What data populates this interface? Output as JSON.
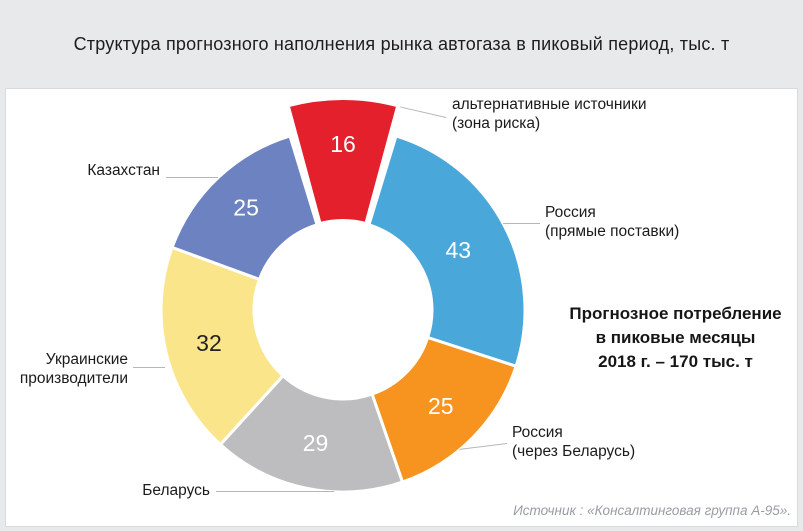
{
  "title": "Структура прогнозного наполнения рынка автогаза в пиковый период, тыс. т",
  "annotation": {
    "text": "Прогнозное потребление\nв пиковые месяцы\n2018 г. – 170 тыс. т"
  },
  "source": "Источник : «Консалтинговая группа А-95».",
  "palette": {
    "band_background": "#e8e9ea",
    "card_background": "#ffffff",
    "card_border": "#d9dadb",
    "callout_line": "#b6b6b6",
    "source_text": "#989ca3"
  },
  "chart_data": {
    "type": "pie",
    "subtype": "donut-exploded-top-slice",
    "title": "Структура прогнозного наполнения рынка автогаза в пиковый период, тыс. т",
    "units": "тыс. т",
    "total": 170,
    "center": [
      343,
      310
    ],
    "inner_radius": 89,
    "outer_radius": 182,
    "slices": [
      {
        "id": "alternative-sources",
        "label": "альтернативные источники\n(зона риска)",
        "value": 16,
        "color": "#e3202c",
        "value_color": "#ffffff",
        "label_radius": 166,
        "pull": 30,
        "pad": 1.8,
        "stroke": 4
      },
      {
        "id": "russia-direct",
        "label": "Россия\n(прямые поставки)",
        "value": 43,
        "color": "#4aa7d9",
        "value_color": "#ffffff",
        "label_radius": 130,
        "pad": 0,
        "stroke": 3
      },
      {
        "id": "russia-via-belarus",
        "label": "Россия\n(через Беларусь)",
        "value": 25,
        "color": "#f7941f",
        "value_color": "#ffffff",
        "label_radius": 137,
        "pad": 0,
        "stroke": 3
      },
      {
        "id": "belarus",
        "label": "Беларусь",
        "value": 29,
        "color": "#bdbdbf",
        "value_color": "#ffffff",
        "label_radius": 136,
        "pad": 0,
        "stroke": 3
      },
      {
        "id": "ukrainian-producers",
        "label": "Украинские\nпроизводители",
        "value": 32,
        "color": "#fbe58a",
        "value_color": "#222222",
        "label_radius": 138,
        "pad": 0,
        "stroke": 3
      },
      {
        "id": "kazakhstan",
        "label": "Казахстан",
        "value": 25,
        "color": "#6d82c0",
        "value_color": "#ffffff",
        "label_radius": 141,
        "pad": 0,
        "stroke": 3
      }
    ]
  }
}
